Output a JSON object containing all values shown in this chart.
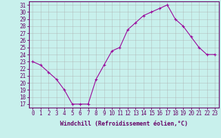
{
  "x": [
    0,
    1,
    2,
    3,
    4,
    5,
    6,
    7,
    8,
    9,
    10,
    11,
    12,
    13,
    14,
    15,
    16,
    17,
    18,
    19,
    20,
    21,
    22,
    23
  ],
  "y": [
    23.0,
    22.5,
    21.5,
    20.5,
    19.0,
    17.0,
    17.0,
    17.0,
    20.5,
    22.5,
    24.5,
    25.0,
    27.5,
    28.5,
    29.5,
    30.0,
    30.5,
    31.0,
    29.0,
    28.0,
    26.5,
    25.0,
    24.0,
    24.0
  ],
  "line_color": "#990099",
  "marker": "+",
  "marker_size": 3,
  "background_color": "#c8f0ec",
  "grid_color": "#aaaaaa",
  "xlabel": "Windchill (Refroidissement éolien,°C)",
  "xlabel_fontsize": 6.0,
  "tick_fontsize": 5.5,
  "ylim_min": 16.5,
  "ylim_max": 31.5,
  "yticks": [
    17,
    18,
    19,
    20,
    21,
    22,
    23,
    24,
    25,
    26,
    27,
    28,
    29,
    30,
    31
  ],
  "xticks": [
    0,
    1,
    2,
    3,
    4,
    5,
    6,
    7,
    8,
    9,
    10,
    11,
    12,
    13,
    14,
    15,
    16,
    17,
    18,
    19,
    20,
    21,
    22,
    23
  ],
  "axis_color": "#660066",
  "spine_color": "#660066"
}
